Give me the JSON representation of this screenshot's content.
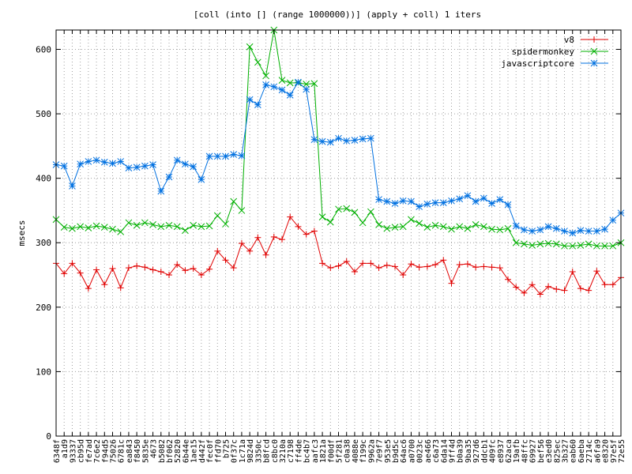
{
  "chart_data": {
    "type": "line",
    "title": "[coll (into [] (range 1000000))] (apply + coll) 1 iters",
    "xlabel": "",
    "ylabel": "msecs",
    "ylim": [
      0,
      630
    ],
    "yticks": [
      0,
      100,
      200,
      300,
      400,
      500,
      600
    ],
    "grid": true,
    "legend_position": "top-right",
    "categories": [
      "6348f",
      "a1d9",
      "93337",
      "cb95d",
      "fe7ad",
      "7c6e2",
      "f94d5",
      "75026",
      "6781c",
      "ea843",
      "f8450",
      "5835e",
      "4673",
      "b5082",
      "bf062",
      "52820",
      "6b44e",
      "1ae15",
      "d442f",
      "fec0f",
      "ffd70",
      "b725",
      "0f37c",
      "1c71a",
      "9824d",
      "3350c",
      "b8fcd",
      "c8bc0",
      "3210a",
      "c7198",
      "ff4de",
      "bc4b7",
      "aafc3",
      "1821a",
      "f00df",
      "5f281",
      "c0a38",
      "4088e",
      "f199c",
      "9962a",
      "7e9f7",
      "953e5",
      "b9d5c",
      "64ac6",
      "a0700",
      "0023c",
      "ae466",
      "c6a73",
      "6da14",
      "9ff4d",
      "b0a39",
      "9ba35",
      "927d6",
      "ddcb1",
      "409fc",
      "e8937",
      "62aca",
      "19afb",
      "48ffc",
      "69927",
      "bef56",
      "e3ed0",
      "825ec",
      "3b327",
      "eab60",
      "6aeba",
      "2714c",
      "a6fa9",
      "e8320",
      "97e5f",
      "72e55"
    ],
    "series": [
      {
        "name": "v8",
        "color": "#e00000",
        "marker": "plus",
        "values": [
          268,
          252,
          268,
          253,
          229,
          258,
          235,
          260,
          230,
          261,
          264,
          262,
          258,
          255,
          250,
          266,
          257,
          260,
          250,
          259,
          287,
          273,
          261,
          299,
          287,
          308,
          281,
          309,
          305,
          340,
          325,
          313,
          318,
          268,
          261,
          264,
          271,
          255,
          268,
          268,
          261,
          265,
          263,
          250,
          267,
          262,
          263,
          266,
          273,
          237,
          266,
          267,
          262,
          263,
          262,
          261,
          243,
          231,
          222,
          235,
          220,
          232,
          228,
          226,
          255,
          229,
          226,
          256,
          235,
          235,
          246
        ]
      },
      {
        "name": "spidermonkey",
        "color": "#00b000",
        "marker": "x",
        "values": [
          336,
          324,
          322,
          325,
          323,
          326,
          324,
          321,
          317,
          331,
          327,
          331,
          328,
          325,
          327,
          325,
          319,
          327,
          325,
          326,
          342,
          329,
          364,
          350,
          604,
          580,
          559,
          630,
          552,
          548,
          548,
          546,
          547,
          340,
          332,
          352,
          353,
          347,
          331,
          348,
          328,
          322,
          324,
          325,
          336,
          330,
          324,
          327,
          325,
          321,
          325,
          322,
          328,
          325,
          321,
          320,
          322,
          300,
          298,
          296,
          298,
          299,
          298,
          295,
          295,
          296,
          298,
          295,
          295,
          295,
          300
        ]
      },
      {
        "name": "javascriptcore",
        "color": "#0070e0",
        "marker": "star",
        "values": [
          421,
          419,
          388,
          422,
          426,
          428,
          425,
          423,
          426,
          416,
          417,
          419,
          421,
          380,
          402,
          428,
          422,
          418,
          398,
          434,
          434,
          434,
          437,
          435,
          522,
          514,
          545,
          542,
          537,
          529,
          549,
          538,
          460,
          457,
          456,
          462,
          458,
          459,
          461,
          462,
          367,
          364,
          361,
          365,
          364,
          356,
          360,
          362,
          362,
          365,
          368,
          373,
          364,
          369,
          361,
          367,
          359,
          326,
          320,
          318,
          320,
          325,
          322,
          318,
          315,
          319,
          318,
          318,
          321,
          335,
          346
        ]
      }
    ]
  }
}
